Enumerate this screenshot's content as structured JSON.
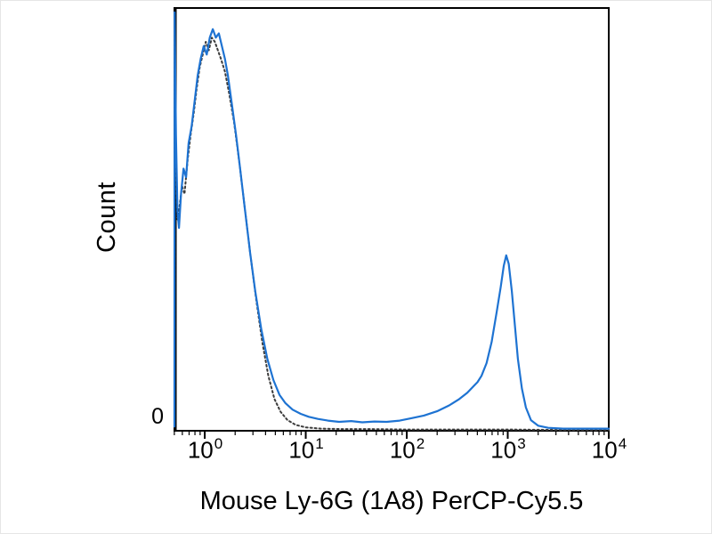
{
  "axes": {
    "y_label": "Count",
    "y_zero_label": "0",
    "x_label": "Mouse Ly-6G (1A8) PerCP-Cy5.5"
  },
  "chart_data": {
    "type": "line",
    "subtype": "flow-cytometry-histogram",
    "title": "",
    "xlabel": "Mouse Ly-6G (1A8) PerCP-Cy5.5",
    "ylabel": "Count",
    "x_scale": "log10",
    "x_range_log": [
      -0.3,
      4
    ],
    "y_range_pct": [
      0,
      100
    ],
    "grid": false,
    "legend": "none",
    "y_ticks": [
      "0"
    ],
    "x_ticks": [
      {
        "log": 0,
        "base": "10",
        "exp": "0"
      },
      {
        "log": 1,
        "base": "10",
        "exp": "1"
      },
      {
        "log": 2,
        "base": "10",
        "exp": "2"
      },
      {
        "log": 3,
        "base": "10",
        "exp": "3"
      },
      {
        "log": 4,
        "base": "10",
        "exp": "4"
      }
    ],
    "series": [
      {
        "name": "dotted-black",
        "style": "dotted",
        "color": "#3c3c3c",
        "width": 2,
        "points": [
          [
            -0.3,
            1
          ],
          [
            -0.298,
            95
          ],
          [
            -0.285,
            64
          ],
          [
            -0.27,
            50
          ],
          [
            -0.25,
            53
          ],
          [
            -0.225,
            58
          ],
          [
            -0.2,
            56
          ],
          [
            -0.17,
            64
          ],
          [
            -0.14,
            70
          ],
          [
            -0.11,
            75
          ],
          [
            -0.08,
            81
          ],
          [
            -0.05,
            86
          ],
          [
            -0.02,
            89
          ],
          [
            0.01,
            92
          ],
          [
            0.04,
            90
          ],
          [
            0.07,
            93
          ],
          [
            0.1,
            92
          ],
          [
            0.13,
            90
          ],
          [
            0.16,
            88
          ],
          [
            0.2,
            85
          ],
          [
            0.24,
            80
          ],
          [
            0.29,
            73
          ],
          [
            0.34,
            64
          ],
          [
            0.39,
            54
          ],
          [
            0.45,
            42
          ],
          [
            0.51,
            31
          ],
          [
            0.57,
            21
          ],
          [
            0.63,
            13
          ],
          [
            0.69,
            7.5
          ],
          [
            0.75,
            4.5
          ],
          [
            0.82,
            2.5
          ],
          [
            0.9,
            1.4
          ],
          [
            1.0,
            0.8
          ],
          [
            1.15,
            0.5
          ],
          [
            1.35,
            0.4
          ],
          [
            1.6,
            0.4
          ],
          [
            2.0,
            0.3
          ],
          [
            2.5,
            0.3
          ],
          [
            3.0,
            0.3
          ],
          [
            3.5,
            0.2
          ],
          [
            4.0,
            0.2
          ]
        ]
      },
      {
        "name": "solid-blue",
        "style": "solid",
        "color": "#1e73d2",
        "width": 2.2,
        "points": [
          [
            -0.3,
            1
          ],
          [
            -0.298,
            99
          ],
          [
            -0.285,
            70
          ],
          [
            -0.27,
            52
          ],
          [
            -0.255,
            48
          ],
          [
            -0.235,
            56
          ],
          [
            -0.21,
            62
          ],
          [
            -0.185,
            60
          ],
          [
            -0.16,
            68
          ],
          [
            -0.13,
            72
          ],
          [
            -0.1,
            78
          ],
          [
            -0.07,
            84
          ],
          [
            -0.04,
            88
          ],
          [
            -0.01,
            91
          ],
          [
            0.02,
            89
          ],
          [
            0.05,
            93
          ],
          [
            0.08,
            95
          ],
          [
            0.11,
            93
          ],
          [
            0.14,
            94
          ],
          [
            0.17,
            91
          ],
          [
            0.2,
            88
          ],
          [
            0.23,
            84
          ],
          [
            0.27,
            77
          ],
          [
            0.31,
            70
          ],
          [
            0.35,
            62
          ],
          [
            0.4,
            52
          ],
          [
            0.45,
            42
          ],
          [
            0.5,
            33
          ],
          [
            0.56,
            24
          ],
          [
            0.62,
            17
          ],
          [
            0.68,
            12
          ],
          [
            0.74,
            8.5
          ],
          [
            0.8,
            6.5
          ],
          [
            0.87,
            5
          ],
          [
            0.95,
            4
          ],
          [
            1.03,
            3.3
          ],
          [
            1.12,
            2.8
          ],
          [
            1.22,
            2.4
          ],
          [
            1.33,
            2.1
          ],
          [
            1.45,
            2.3
          ],
          [
            1.56,
            2.0
          ],
          [
            1.68,
            2.2
          ],
          [
            1.8,
            2.1
          ],
          [
            1.93,
            2.4
          ],
          [
            2.05,
            3.0
          ],
          [
            2.17,
            3.6
          ],
          [
            2.3,
            4.6
          ],
          [
            2.42,
            6.0
          ],
          [
            2.52,
            7.5
          ],
          [
            2.6,
            9.0
          ],
          [
            2.66,
            10.5
          ],
          [
            2.7,
            11.5
          ],
          [
            2.74,
            13.0
          ],
          [
            2.79,
            16.0
          ],
          [
            2.84,
            21.0
          ],
          [
            2.89,
            28.0
          ],
          [
            2.93,
            34.0
          ],
          [
            2.96,
            39.0
          ],
          [
            2.985,
            41.5
          ],
          [
            3.01,
            39.5
          ],
          [
            3.04,
            33.0
          ],
          [
            3.07,
            25.0
          ],
          [
            3.1,
            17.0
          ],
          [
            3.14,
            10.0
          ],
          [
            3.18,
            5.5
          ],
          [
            3.23,
            2.5
          ],
          [
            3.3,
            1.2
          ],
          [
            3.4,
            0.7
          ],
          [
            3.55,
            0.5
          ],
          [
            3.7,
            0.5
          ],
          [
            3.85,
            0.5
          ],
          [
            4.0,
            0.5
          ]
        ]
      }
    ]
  }
}
